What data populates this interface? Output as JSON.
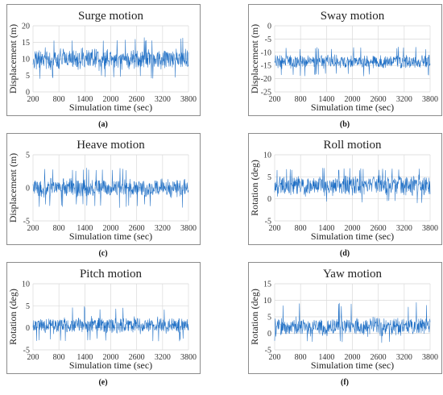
{
  "figure": {
    "color": "#1f6fc5",
    "captions": [
      "(a)",
      "(b)",
      "(c)",
      "(d)",
      "(e)",
      "(f)"
    ]
  },
  "chart_data": [
    {
      "type": "line",
      "title": "Surge motion",
      "xlabel": "Simulation time (sec)",
      "ylabel": "Displacement (m)",
      "xlim": [
        200,
        3800
      ],
      "ylim": [
        0,
        20
      ],
      "xticks": [
        200,
        800,
        1400,
        2000,
        2600,
        3200,
        3800
      ],
      "yticks": [
        0,
        5,
        10,
        15,
        20
      ],
      "grid": true,
      "signal": {
        "x_start": 200,
        "x_end": 3800,
        "mean": 10,
        "typical_range": [
          6.5,
          13.5
        ],
        "extreme_range": [
          4,
          16.5
        ]
      }
    },
    {
      "type": "line",
      "title": "Sway motion",
      "xlabel": "Simulation time (sec)",
      "ylabel": "Displacement (m)",
      "xlim": [
        200,
        3800
      ],
      "ylim": [
        -25,
        0
      ],
      "xticks": [
        200,
        800,
        1400,
        2000,
        2600,
        3200,
        3800
      ],
      "yticks": [
        -25,
        -20,
        -15,
        -10,
        -5,
        0
      ],
      "grid": true,
      "signal": {
        "x_start": 200,
        "x_end": 3800,
        "mean": -13.5,
        "typical_range": [
          -16.5,
          -10.5
        ],
        "extreme_range": [
          -19,
          -8
        ]
      }
    },
    {
      "type": "line",
      "title": "Heave motion",
      "xlabel": "Simulation time (sec)",
      "ylabel": "Displacement (m)",
      "xlim": [
        200,
        3800
      ],
      "ylim": [
        -5,
        5
      ],
      "xticks": [
        200,
        800,
        1400,
        2000,
        2600,
        3200,
        3800
      ],
      "yticks": [
        -5,
        0,
        5
      ],
      "grid": true,
      "signal": {
        "x_start": 200,
        "x_end": 3800,
        "mean": 0,
        "typical_range": [
          -1.5,
          1.5
        ],
        "extreme_range": [
          -3,
          3
        ]
      }
    },
    {
      "type": "line",
      "title": "Roll motion",
      "xlabel": "Simulation time (sec)",
      "ylabel": "Rotation (deg)",
      "xlim": [
        200,
        3800
      ],
      "ylim": [
        -5,
        10
      ],
      "xticks": [
        200,
        800,
        1400,
        2000,
        2600,
        3200,
        3800
      ],
      "yticks": [
        -5,
        0,
        5,
        10
      ],
      "grid": true,
      "signal": {
        "x_start": 200,
        "x_end": 3800,
        "mean": 3,
        "typical_range": [
          0.5,
          5.5
        ],
        "extreme_range": [
          -1,
          7
        ]
      }
    },
    {
      "type": "line",
      "title": "Pitch motion",
      "xlabel": "Simulation time (sec)",
      "ylabel": "Rotation (deg)",
      "xlim": [
        200,
        3800
      ],
      "ylim": [
        -5,
        10
      ],
      "xticks": [
        200,
        800,
        1400,
        2000,
        2600,
        3200,
        3800
      ],
      "yticks": [
        -5,
        0,
        5,
        10
      ],
      "grid": true,
      "signal": {
        "x_start": 200,
        "x_end": 3800,
        "mean": 0.5,
        "typical_range": [
          -1.5,
          2.5
        ],
        "extreme_range": [
          -3,
          5
        ]
      }
    },
    {
      "type": "line",
      "title": "Yaw motion",
      "xlabel": "Simulation time (sec)",
      "ylabel": "Rotation (deg)",
      "xlim": [
        200,
        3800
      ],
      "ylim": [
        -5,
        15
      ],
      "xticks": [
        200,
        800,
        1400,
        2000,
        2600,
        3200,
        3800
      ],
      "yticks": [
        -5,
        0,
        5,
        10,
        15
      ],
      "grid": true,
      "signal": {
        "x_start": 200,
        "x_end": 3800,
        "mean": 2,
        "typical_range": [
          -1,
          5
        ],
        "extreme_range": [
          -3,
          9.5
        ]
      }
    }
  ]
}
